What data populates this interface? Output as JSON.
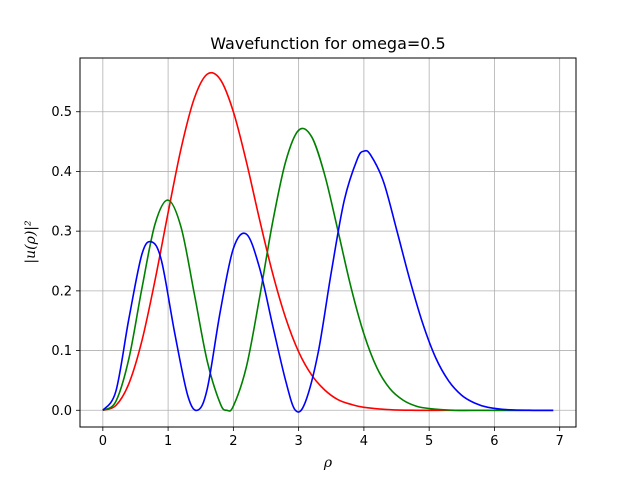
{
  "chart_data": {
    "type": "line",
    "title": "Wavefunction for omega=0.5",
    "xlabel": "ρ",
    "ylabel": "|u(ρ)|²",
    "xlim": [
      -0.35,
      7.25
    ],
    "ylim": [
      -0.028,
      0.59
    ],
    "grid": true,
    "xticks": [
      0,
      1,
      2,
      3,
      4,
      5,
      6,
      7
    ],
    "yticks": [
      0.0,
      0.1,
      0.2,
      0.3,
      0.4,
      0.5
    ],
    "xtick_labels": [
      "0",
      "1",
      "2",
      "3",
      "4",
      "5",
      "6",
      "7"
    ],
    "ytick_labels": [
      "0.0",
      "0.1",
      "0.2",
      "0.3",
      "0.4",
      "0.5"
    ],
    "series": [
      {
        "color": "#ff0000",
        "x": [
          0,
          0.2,
          0.4,
          0.6,
          0.8,
          1.0,
          1.2,
          1.4,
          1.6,
          1.8,
          2.0,
          2.2,
          2.4,
          2.6,
          2.8,
          3.0,
          3.2,
          3.4,
          3.6,
          3.8,
          4.0,
          4.4,
          4.8,
          5.2,
          5.6,
          6.0,
          6.5,
          6.9
        ],
        "values": [
          0.0,
          0.008,
          0.045,
          0.117,
          0.218,
          0.331,
          0.439,
          0.522,
          0.563,
          0.554,
          0.5,
          0.416,
          0.32,
          0.23,
          0.155,
          0.098,
          0.059,
          0.034,
          0.018,
          0.01,
          0.005,
          0.001,
          0.0,
          0.0,
          0.0,
          0.0,
          0.0,
          0.0
        ]
      },
      {
        "color": "#008000",
        "x": [
          0,
          0.2,
          0.4,
          0.6,
          0.8,
          1.0,
          1.2,
          1.4,
          1.6,
          1.8,
          1.9,
          2.0,
          2.2,
          2.4,
          2.6,
          2.8,
          3.0,
          3.2,
          3.4,
          3.6,
          3.8,
          4.0,
          4.2,
          4.4,
          4.6,
          4.8,
          5.0,
          5.4,
          5.8,
          6.2,
          6.9
        ],
        "values": [
          0.0,
          0.015,
          0.087,
          0.205,
          0.312,
          0.352,
          0.306,
          0.196,
          0.082,
          0.011,
          0.0,
          0.007,
          0.073,
          0.188,
          0.314,
          0.416,
          0.469,
          0.458,
          0.394,
          0.302,
          0.207,
          0.128,
          0.071,
          0.036,
          0.017,
          0.007,
          0.003,
          0.0,
          0.0,
          0.0,
          0.0
        ]
      },
      {
        "color": "#0000ff",
        "x": [
          0,
          0.2,
          0.4,
          0.6,
          0.75,
          0.9,
          1.1,
          1.3,
          1.45,
          1.6,
          1.8,
          2.0,
          2.2,
          2.4,
          2.6,
          2.8,
          2.95,
          3.1,
          3.3,
          3.5,
          3.7,
          3.9,
          4.0,
          4.1,
          4.3,
          4.5,
          4.7,
          4.9,
          5.1,
          5.3,
          5.5,
          5.7,
          5.9,
          6.2,
          6.6,
          6.9
        ],
        "values": [
          0.0,
          0.032,
          0.154,
          0.262,
          0.282,
          0.25,
          0.13,
          0.025,
          0.0,
          0.036,
          0.166,
          0.271,
          0.295,
          0.239,
          0.143,
          0.05,
          0.0,
          0.013,
          0.097,
          0.231,
          0.352,
          0.421,
          0.434,
          0.428,
          0.383,
          0.303,
          0.22,
          0.146,
          0.088,
          0.049,
          0.025,
          0.012,
          0.005,
          0.001,
          0.0,
          0.0
        ]
      }
    ]
  }
}
